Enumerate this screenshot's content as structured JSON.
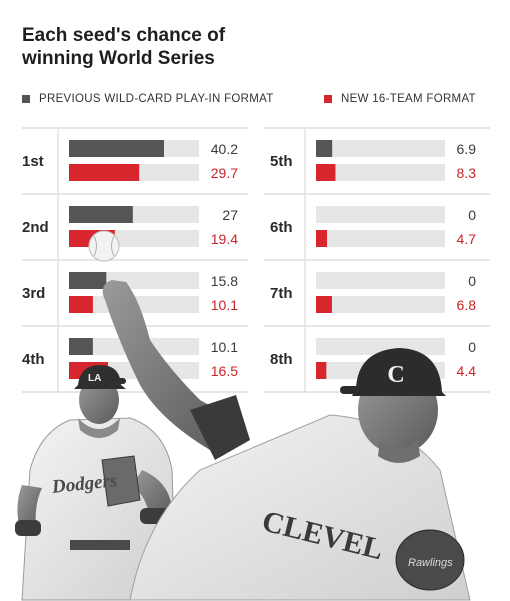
{
  "chart_data": {
    "type": "bar",
    "title": "Each seed's chance of winning World Series",
    "legend_placement": "top",
    "series": [
      {
        "name": "PREVIOUS WILD-CARD PLAY-IN FORMAT",
        "color": "#555555",
        "values": [
          40.2,
          27,
          15.8,
          10.1,
          6.9,
          0,
          0,
          0
        ]
      },
      {
        "name": "NEW 16-TEAM FORMAT",
        "color": "#d7262d",
        "values": [
          29.7,
          19.4,
          10.1,
          16.5,
          8.3,
          4.7,
          6.8,
          4.4
        ]
      }
    ],
    "categories": [
      "1st",
      "2nd",
      "3rd",
      "4th",
      "5th",
      "6th",
      "7th",
      "8th"
    ],
    "xlim": [
      0,
      55
    ],
    "track_color": "#e6e6e6",
    "grid": false
  },
  "images": {
    "left_player": "baseball-player-dodgers-icon",
    "right_player": "pitcher-cleveland-icon",
    "ball": "baseball-icon",
    "jersey_left": "Dodgers",
    "jersey_right": "CLEVEL",
    "cap_letter": "C"
  }
}
